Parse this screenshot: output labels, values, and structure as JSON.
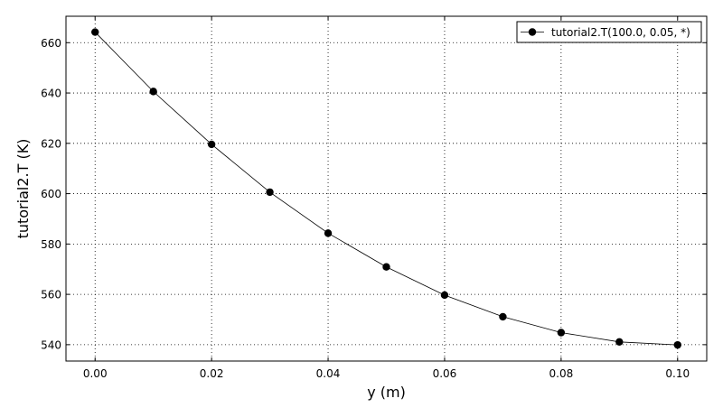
{
  "chart_data": {
    "type": "line",
    "title": "",
    "xlabel": "y (m)",
    "ylabel": "tutorial2.T (K)",
    "xlim": [
      -0.005,
      0.105
    ],
    "ylim": [
      533.5,
      670.5
    ],
    "x_ticks": [
      0.0,
      0.02,
      0.04,
      0.06,
      0.08,
      0.1
    ],
    "x_tick_labels": [
      "0.00",
      "0.02",
      "0.04",
      "0.06",
      "0.08",
      "0.10"
    ],
    "y_ticks": [
      540,
      560,
      580,
      600,
      620,
      640,
      660
    ],
    "y_tick_labels": [
      "540",
      "560",
      "580",
      "600",
      "620",
      "640",
      "660"
    ],
    "grid": true,
    "legend_position": "top-right",
    "series": [
      {
        "name": "tutorial2.T(100.0, 0.05, *)",
        "color": "#000000",
        "marker": "circle",
        "x": [
          0.0,
          0.01,
          0.02,
          0.03,
          0.04,
          0.05,
          0.06,
          0.07,
          0.08,
          0.09,
          0.1
        ],
        "y": [
          664.2,
          640.6,
          619.6,
          600.6,
          584.3,
          570.9,
          559.7,
          551.1,
          544.8,
          541.1,
          539.9
        ]
      }
    ]
  }
}
